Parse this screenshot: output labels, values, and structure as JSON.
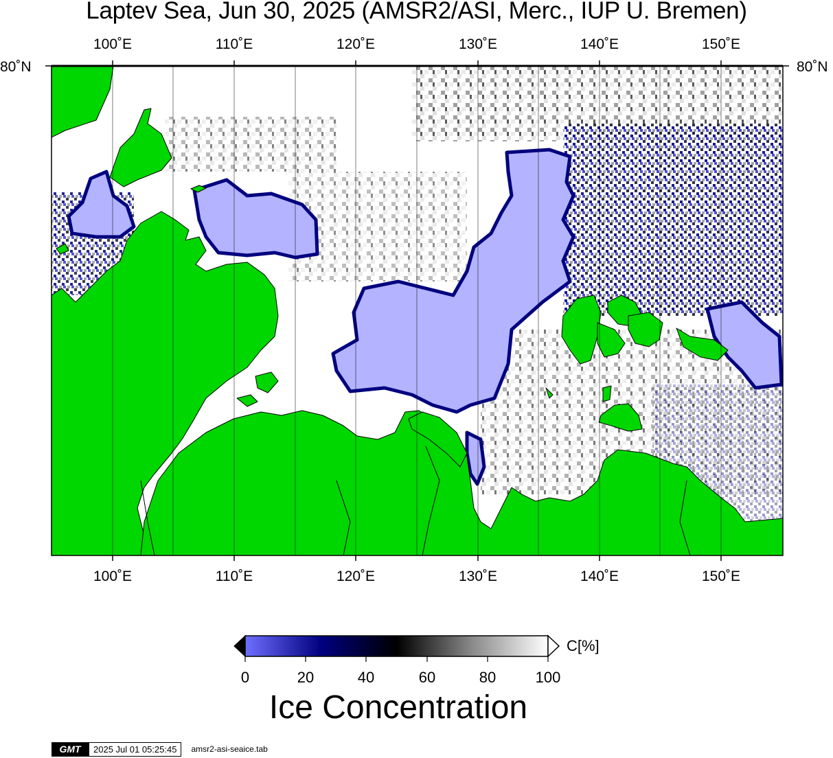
{
  "title": "Laptev Sea, Jun 30, 2025 (AMSR2/ASI, Merc., IUP U. Bremen)",
  "map": {
    "longitude_ticks": [
      "100˚E",
      "110˚E",
      "120˚E",
      "130˚E",
      "140˚E",
      "150˚E"
    ],
    "longitude_values": [
      100,
      110,
      120,
      130,
      140,
      150
    ],
    "longitude_range": [
      95,
      155
    ],
    "latitude_label": "80˚N",
    "colors": {
      "land": "#00d600",
      "open_water": "#b3b3ff",
      "frame": "#000000"
    }
  },
  "colorbar": {
    "ticks": [
      "0",
      "20",
      "40",
      "60",
      "80",
      "100"
    ],
    "unit": "C[%]",
    "title": "Ice Concentration",
    "color_stops": [
      "#6f6fff",
      "#00007f",
      "#000000",
      "#7f7f7f",
      "#ffffff"
    ]
  },
  "footer": {
    "logo": "GMT",
    "timestamp": "2025 Jul 01 05:25:45",
    "source": "amsr2-asi-seaice.tab"
  }
}
